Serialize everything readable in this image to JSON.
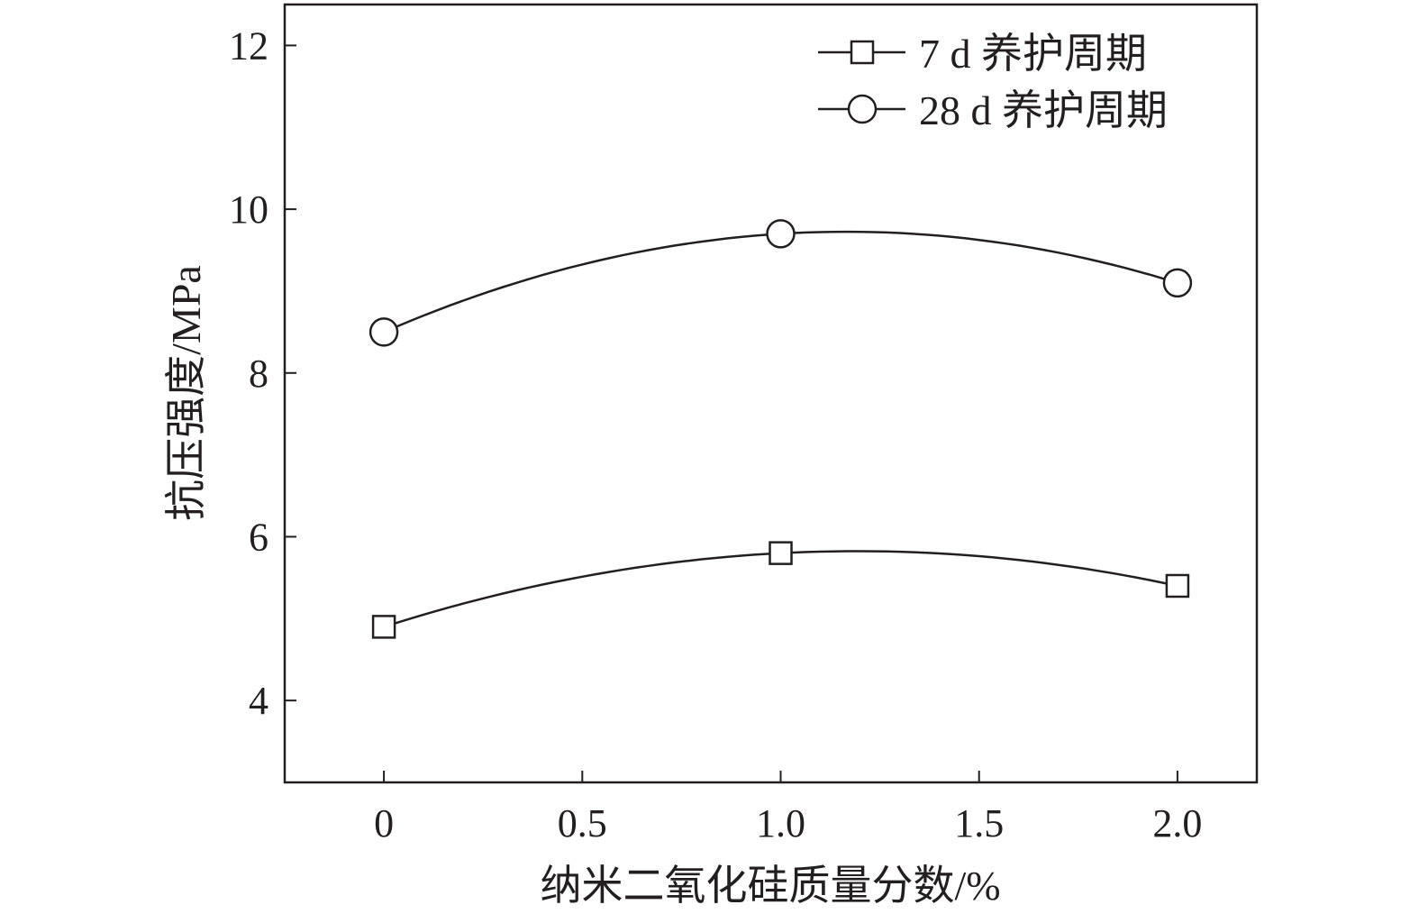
{
  "chart_data": {
    "type": "line",
    "title": "",
    "xlabel": "纳米二氧化硅质量分数/%",
    "ylabel": "抗压强度/MPa",
    "xlim": [
      -0.25,
      2.2
    ],
    "ylim": [
      3,
      12.5
    ],
    "xticks": [
      0,
      0.5,
      1.0,
      1.5,
      2.0
    ],
    "xtick_labels": [
      "0",
      "0.5",
      "1.0",
      "1.5",
      "2.0"
    ],
    "yticks": [
      4,
      6,
      8,
      10,
      12
    ],
    "ytick_labels": [
      "4",
      "6",
      "8",
      "10",
      "12"
    ],
    "grid": false,
    "legend_position": "top-right",
    "x": [
      0,
      1.0,
      2.0
    ],
    "series": [
      {
        "name": "7 d 养护周期",
        "marker": "square",
        "values": [
          4.9,
          5.8,
          5.4
        ]
      },
      {
        "name": "28 d 养护周期",
        "marker": "circle",
        "values": [
          8.5,
          9.7,
          9.1
        ]
      }
    ],
    "colors": {
      "line": "#231f20",
      "marker_fill": "#ffffff"
    }
  }
}
